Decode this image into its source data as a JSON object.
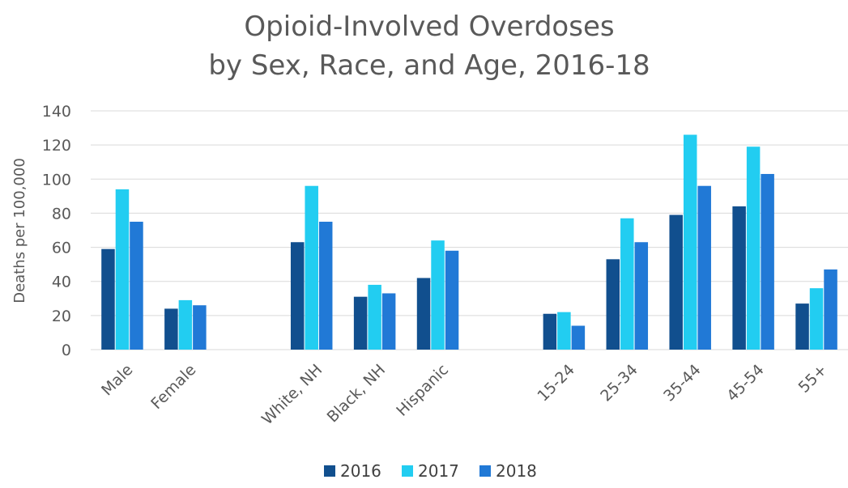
{
  "chart_data": {
    "type": "bar",
    "title_lines": [
      "Opioid-Involved Overdoses",
      "by Sex, Race, and Age, 2016-18"
    ],
    "xlabel": "",
    "ylabel": "Deaths per 100,000",
    "ylim": [
      0,
      140
    ],
    "yticks": [
      "0",
      "20",
      "40",
      "60",
      "80",
      "100",
      "120",
      "140"
    ],
    "grid": true,
    "legend_position": "bottom",
    "categories": [
      "Male",
      "Female",
      "",
      "White, NH",
      "Black, NH",
      "Hispanic",
      "",
      "15-24",
      "25-34",
      "35-44",
      "45-54",
      "55+"
    ],
    "series": [
      {
        "name": "2016",
        "color": "#114f8e",
        "values": [
          59,
          24,
          null,
          63,
          31,
          42,
          null,
          21,
          53,
          79,
          84,
          27
        ]
      },
      {
        "name": "2017",
        "color": "#22cdf1",
        "values": [
          94,
          29,
          null,
          96,
          38,
          64,
          null,
          22,
          77,
          126,
          119,
          36
        ]
      },
      {
        "name": "2018",
        "color": "#2179d6",
        "values": [
          75,
          26,
          null,
          75,
          33,
          58,
          null,
          14,
          63,
          96,
          103,
          47
        ]
      }
    ]
  }
}
